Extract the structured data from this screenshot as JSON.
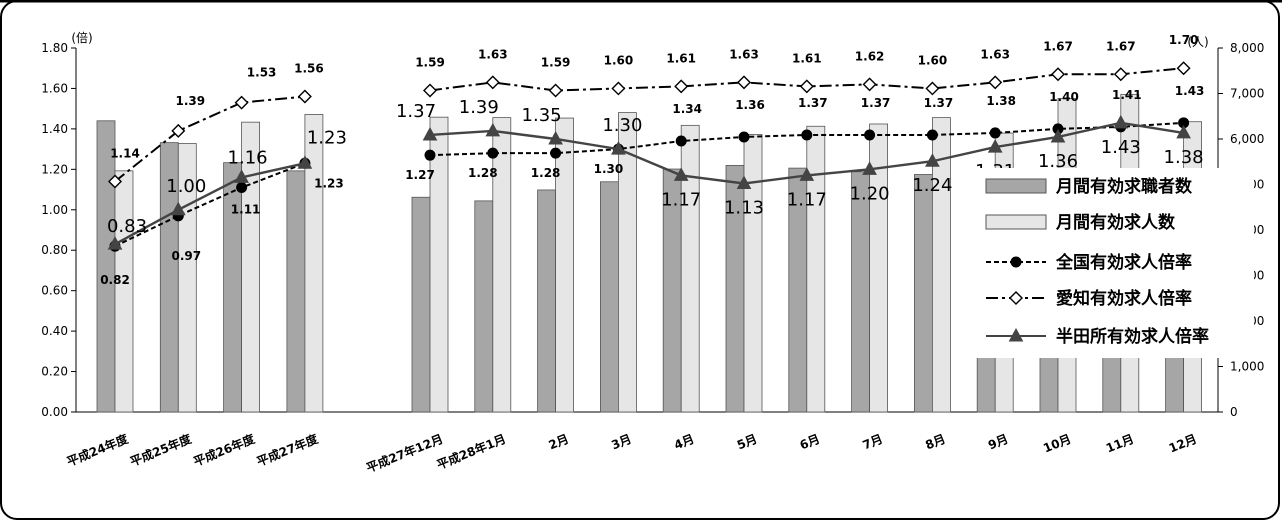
{
  "chart_data": {
    "type": "bar",
    "categories": [
      "平成24年度",
      "平成25年度",
      "平成26年度",
      "平成27年度",
      "平成27年12月",
      "平成28年1月",
      "2月",
      "3月",
      "4月",
      "5月",
      "6月",
      "7月",
      "8月",
      "9月",
      "10月",
      "11月",
      "12月"
    ],
    "left_axis": {
      "unit": "(倍)",
      "ylim": [
        0,
        1.8
      ],
      "ticks": [
        "0.00",
        "0.20",
        "0.40",
        "0.60",
        "0.80",
        "1.00",
        "1.20",
        "1.40",
        "1.60",
        "1.80"
      ]
    },
    "right_axis": {
      "unit": "(人)",
      "ylim": [
        0,
        8000
      ],
      "ticks": [
        "0",
        "1,000",
        "2,000",
        "3,000",
        "4,000",
        "5,000",
        "6,000",
        "7,000",
        "8,000"
      ]
    },
    "series": [
      {
        "name": "月間有効求職者数",
        "kind": "bar",
        "axis": "right",
        "color": "#a6a6a6",
        "values": [
          6400,
          5920,
          5480,
          5300,
          4720,
          4640,
          4880,
          5060,
          5340,
          5420,
          5360,
          5280,
          5220,
          5100,
          4980,
          5020,
          5000
        ]
      },
      {
        "name": "月間有効求人数",
        "kind": "bar",
        "axis": "right",
        "color": "#e6e6e6",
        "values": [
          5300,
          5900,
          6370,
          6540,
          6480,
          6470,
          6460,
          6580,
          6300,
          6100,
          6280,
          6330,
          6470,
          6130,
          6890,
          6980,
          6380
        ]
      },
      {
        "name": "全国有効求人倍率",
        "kind": "line",
        "axis": "left",
        "style": "dashed",
        "marker": "circle",
        "values": [
          0.82,
          0.97,
          1.11,
          1.23,
          1.27,
          1.28,
          1.28,
          1.3,
          1.34,
          1.36,
          1.37,
          1.37,
          1.37,
          1.38,
          1.4,
          1.41,
          1.43
        ]
      },
      {
        "name": "愛知有効求人倍率",
        "kind": "line",
        "axis": "left",
        "style": "dashdot",
        "marker": "diamond",
        "values": [
          1.14,
          1.39,
          1.53,
          1.56,
          1.59,
          1.63,
          1.59,
          1.6,
          1.61,
          1.63,
          1.61,
          1.62,
          1.6,
          1.63,
          1.67,
          1.67,
          1.7
        ]
      },
      {
        "name": "半田所有効求人倍率",
        "kind": "line",
        "axis": "left",
        "style": "solid",
        "marker": "triangle",
        "values": [
          0.83,
          1.0,
          1.16,
          1.23,
          1.37,
          1.39,
          1.35,
          1.3,
          1.17,
          1.13,
          1.17,
          1.2,
          1.24,
          1.31,
          1.36,
          1.43,
          1.38
        ]
      }
    ],
    "legend_position": "right",
    "grid": false
  }
}
